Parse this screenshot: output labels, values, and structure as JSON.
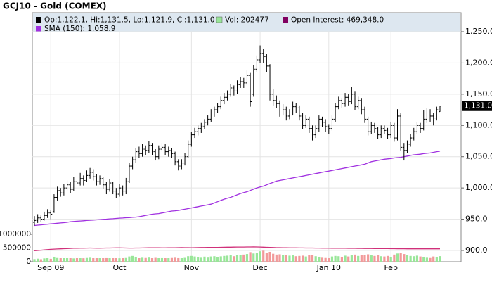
{
  "chart_data": {
    "type": "ohlc",
    "title": "GCJ10 - Gold (COMEX)",
    "legend": [
      "Op:1,122.1, Hi:1,131.5, Lo:1,121.9, Cl:1,131.0",
      "Vol: 202477",
      "Open Interest: 469,348.0",
      "SMA (150): 1,058.9"
    ],
    "categories": [
      null,
      null,
      null,
      null,
      null,
      "Sep 09",
      null,
      null,
      null,
      null,
      null,
      null,
      null,
      null,
      null,
      null,
      null,
      null,
      null,
      null,
      null,
      null,
      null,
      null,
      null,
      null,
      "Oct",
      null,
      null,
      null,
      null,
      null,
      null,
      null,
      null,
      null,
      null,
      null,
      null,
      null,
      null,
      null,
      null,
      null,
      null,
      null,
      null,
      null,
      "Nov",
      null,
      null,
      null,
      null,
      null,
      null,
      null,
      null,
      null,
      null,
      null,
      null,
      null,
      null,
      null,
      null,
      null,
      null,
      null,
      null,
      "Dec",
      null,
      null,
      null,
      null,
      null,
      null,
      null,
      null,
      null,
      null,
      null,
      null,
      null,
      null,
      null,
      null,
      null,
      null,
      null,
      null,
      "Jan 10",
      null,
      null,
      null,
      null,
      null,
      null,
      null,
      null,
      null,
      null,
      null,
      null,
      null,
      null,
      null,
      null,
      null,
      null,
      "Feb",
      null,
      null,
      null,
      null,
      null,
      null,
      null,
      null,
      null,
      null,
      null,
      null,
      null,
      null,
      null
    ],
    "ohlc": [
      [
        945,
        955,
        940,
        948
      ],
      [
        948,
        958,
        944,
        952
      ],
      [
        952,
        956,
        945,
        950
      ],
      [
        950,
        962,
        948,
        956
      ],
      [
        956,
        966,
        952,
        960
      ],
      [
        960,
        964,
        950,
        958
      ],
      [
        962,
        990,
        960,
        985
      ],
      [
        985,
        1002,
        980,
        996
      ],
      [
        996,
        1000,
        986,
        992
      ],
      [
        992,
        1006,
        988,
        1000
      ],
      [
        1000,
        1012,
        996,
        1005
      ],
      [
        1005,
        1010,
        992,
        998
      ],
      [
        998,
        1018,
        995,
        1010
      ],
      [
        1010,
        1016,
        1000,
        1008
      ],
      [
        1008,
        1024,
        1004,
        1015
      ],
      [
        1015,
        1020,
        1004,
        1012
      ],
      [
        1012,
        1028,
        1010,
        1020
      ],
      [
        1020,
        1032,
        1015,
        1025
      ],
      [
        1025,
        1030,
        1012,
        1018
      ],
      [
        1018,
        1022,
        1004,
        1010
      ],
      [
        1010,
        1020,
        1005,
        1015
      ],
      [
        1015,
        1018,
        998,
        1005
      ],
      [
        1005,
        1010,
        990,
        998
      ],
      [
        998,
        1014,
        994,
        1008
      ],
      [
        1008,
        1010,
        990,
        995
      ],
      [
        995,
        1000,
        984,
        990
      ],
      [
        990,
        1006,
        986,
        1000
      ],
      [
        1000,
        1004,
        988,
        995
      ],
      [
        995,
        1016,
        990,
        1010
      ],
      [
        1010,
        1040,
        1008,
        1035
      ],
      [
        1035,
        1050,
        1030,
        1045
      ],
      [
        1045,
        1064,
        1040,
        1058
      ],
      [
        1058,
        1066,
        1048,
        1055
      ],
      [
        1055,
        1070,
        1050,
        1062
      ],
      [
        1062,
        1068,
        1052,
        1060
      ],
      [
        1060,
        1075,
        1056,
        1068
      ],
      [
        1068,
        1072,
        1052,
        1058
      ],
      [
        1058,
        1062,
        1044,
        1050
      ],
      [
        1050,
        1068,
        1046,
        1062
      ],
      [
        1062,
        1072,
        1058,
        1065
      ],
      [
        1065,
        1070,
        1052,
        1058
      ],
      [
        1058,
        1066,
        1050,
        1060
      ],
      [
        1060,
        1064,
        1048,
        1055
      ],
      [
        1055,
        1058,
        1036,
        1042
      ],
      [
        1042,
        1046,
        1028,
        1035
      ],
      [
        1035,
        1046,
        1030,
        1040
      ],
      [
        1040,
        1056,
        1036,
        1050
      ],
      [
        1050,
        1076,
        1048,
        1070
      ],
      [
        1070,
        1090,
        1066,
        1085
      ],
      [
        1085,
        1096,
        1080,
        1090
      ],
      [
        1090,
        1100,
        1084,
        1095
      ],
      [
        1095,
        1104,
        1088,
        1098
      ],
      [
        1098,
        1110,
        1094,
        1105
      ],
      [
        1105,
        1116,
        1100,
        1110
      ],
      [
        1110,
        1126,
        1106,
        1120
      ],
      [
        1120,
        1130,
        1114,
        1125
      ],
      [
        1125,
        1136,
        1120,
        1130
      ],
      [
        1130,
        1146,
        1126,
        1140
      ],
      [
        1140,
        1152,
        1134,
        1145
      ],
      [
        1145,
        1156,
        1140,
        1150
      ],
      [
        1150,
        1166,
        1146,
        1160
      ],
      [
        1160,
        1164,
        1148,
        1155
      ],
      [
        1155,
        1172,
        1150,
        1165
      ],
      [
        1165,
        1178,
        1160,
        1170
      ],
      [
        1170,
        1176,
        1160,
        1168
      ],
      [
        1168,
        1188,
        1164,
        1180
      ],
      [
        1180,
        1184,
        1130,
        1138
      ],
      [
        1150,
        1196,
        1146,
        1190
      ],
      [
        1190,
        1212,
        1186,
        1205
      ],
      [
        1205,
        1228,
        1200,
        1215
      ],
      [
        1215,
        1222,
        1200,
        1210
      ],
      [
        1210,
        1214,
        1185,
        1195
      ],
      [
        1195,
        1198,
        1140,
        1150
      ],
      [
        1150,
        1158,
        1132,
        1140
      ],
      [
        1140,
        1148,
        1128,
        1135
      ],
      [
        1135,
        1140,
        1114,
        1120
      ],
      [
        1120,
        1134,
        1116,
        1125
      ],
      [
        1125,
        1130,
        1108,
        1115
      ],
      [
        1115,
        1126,
        1110,
        1120
      ],
      [
        1120,
        1138,
        1116,
        1130
      ],
      [
        1130,
        1136,
        1120,
        1128
      ],
      [
        1128,
        1132,
        1108,
        1115
      ],
      [
        1115,
        1120,
        1094,
        1100
      ],
      [
        1100,
        1116,
        1096,
        1110
      ],
      [
        1110,
        1114,
        1088,
        1095
      ],
      [
        1095,
        1100,
        1076,
        1085
      ],
      [
        1085,
        1100,
        1080,
        1095
      ],
      [
        1095,
        1116,
        1090,
        1110
      ],
      [
        1110,
        1114,
        1098,
        1105
      ],
      [
        1105,
        1110,
        1090,
        1098
      ],
      [
        1098,
        1102,
        1086,
        1095
      ],
      [
        1095,
        1116,
        1092,
        1110
      ],
      [
        1110,
        1136,
        1106,
        1130
      ],
      [
        1130,
        1146,
        1126,
        1140
      ],
      [
        1140,
        1144,
        1128,
        1135
      ],
      [
        1135,
        1152,
        1130,
        1145
      ],
      [
        1145,
        1150,
        1132,
        1138
      ],
      [
        1138,
        1162,
        1134,
        1150
      ],
      [
        1150,
        1154,
        1124,
        1130
      ],
      [
        1130,
        1146,
        1126,
        1140
      ],
      [
        1140,
        1144,
        1118,
        1125
      ],
      [
        1125,
        1130,
        1104,
        1110
      ],
      [
        1110,
        1114,
        1084,
        1090
      ],
      [
        1090,
        1106,
        1086,
        1100
      ],
      [
        1100,
        1104,
        1088,
        1095
      ],
      [
        1095,
        1098,
        1078,
        1085
      ],
      [
        1085,
        1100,
        1080,
        1095
      ],
      [
        1095,
        1100,
        1086,
        1092
      ],
      [
        1092,
        1096,
        1078,
        1085
      ],
      [
        1085,
        1106,
        1080,
        1100
      ],
      [
        1100,
        1104,
        1074,
        1080
      ],
      [
        1080,
        1126,
        1076,
        1115
      ],
      [
        1115,
        1120,
        1060,
        1065
      ],
      [
        1065,
        1072,
        1044,
        1060
      ],
      [
        1060,
        1076,
        1056,
        1070
      ],
      [
        1070,
        1086,
        1066,
        1080
      ],
      [
        1080,
        1096,
        1076,
        1090
      ],
      [
        1090,
        1106,
        1086,
        1100
      ],
      [
        1100,
        1104,
        1088,
        1095
      ],
      [
        1095,
        1124,
        1092,
        1110
      ],
      [
        1110,
        1128,
        1104,
        1120
      ],
      [
        1120,
        1126,
        1106,
        1115
      ],
      [
        1115,
        1120,
        1100,
        1112
      ],
      [
        1112,
        1130,
        1108,
        1125
      ],
      [
        1122.1,
        1131.5,
        1121.9,
        1131
      ]
    ],
    "sma": {
      "name": "SMA (150)",
      "color": "#a030e0",
      "values": [
        940,
        940.5,
        941,
        941.5,
        942,
        942.5,
        943,
        943.5,
        944,
        944.5,
        945,
        946,
        946.4,
        946.8,
        947.2,
        947.5,
        947.9,
        948.3,
        948.6,
        949,
        949.4,
        949.7,
        950.1,
        950.5,
        950.8,
        951.2,
        951.6,
        951.9,
        952.3,
        952.6,
        953,
        953.4,
        954,
        955,
        956,
        957,
        958,
        958.5,
        959,
        960,
        961,
        962,
        963,
        963.5,
        964,
        965,
        966,
        967,
        968,
        969,
        970,
        971,
        972,
        973,
        974,
        976,
        978,
        980,
        982,
        983.5,
        985,
        987,
        989,
        991,
        992.5,
        994,
        996,
        998,
        1000,
        1001.5,
        1003,
        1005,
        1007,
        1009,
        1011,
        1012,
        1013,
        1014,
        1015,
        1016,
        1017,
        1018,
        1019,
        1020,
        1021,
        1022,
        1023,
        1024,
        1025,
        1026,
        1027,
        1028,
        1029,
        1030,
        1031,
        1032,
        1033,
        1034,
        1035,
        1036,
        1037,
        1038,
        1040,
        1042,
        1043,
        1044,
        1045,
        1046,
        1046.5,
        1047,
        1048,
        1048.5,
        1049,
        1050,
        1051,
        1052,
        1053,
        1053.5,
        1054,
        1055,
        1055.5,
        1056,
        1057,
        1058,
        1058.9
      ]
    },
    "volume": {
      "up_color": "#99e699",
      "down_color": "#f29a9a",
      "values": [
        95000,
        110000,
        90000,
        120000,
        130000,
        105000,
        180000,
        160000,
        140000,
        150000,
        130000,
        140000,
        120000,
        150000,
        135000,
        125000,
        160000,
        170000,
        150000,
        140000,
        130000,
        145000,
        155000,
        135000,
        150000,
        140000,
        125000,
        135000,
        160000,
        190000,
        210000,
        180000,
        150000,
        170000,
        160000,
        175000,
        150000,
        165000,
        140000,
        155000,
        150000,
        145000,
        160000,
        170000,
        155000,
        140000,
        165000,
        200000,
        210000,
        190000,
        180000,
        170000,
        185000,
        175000,
        190000,
        200000,
        180000,
        195000,
        210000,
        220000,
        230000,
        200000,
        240000,
        250000,
        260000,
        280000,
        350000,
        300000,
        320000,
        380000,
        400000,
        330000,
        360000,
        290000,
        260000,
        270000,
        240000,
        250000,
        220000,
        230000,
        200000,
        210000,
        220000,
        190000,
        230000,
        250000,
        200000,
        180000,
        170000,
        160000,
        150000,
        190000,
        210000,
        200000,
        180000,
        220000,
        190000,
        230000,
        260000,
        210000,
        240000,
        250000,
        270000,
        230000,
        210000,
        240000,
        200000,
        190000,
        210000,
        180000,
        260000,
        300000,
        330000,
        280000,
        240000,
        210000,
        200000,
        220000,
        190000,
        180000,
        170000,
        160000,
        190000,
        180000,
        202477
      ]
    },
    "open_interest": {
      "name": "Open Interest",
      "color": "#d0307a",
      "values": [
        400000,
        410000,
        420000,
        430000,
        440000,
        450000,
        460000,
        465000,
        470000,
        475000,
        480000,
        485000,
        490000,
        492000,
        494000,
        496000,
        498000,
        500000,
        498000,
        496000,
        495000,
        497000,
        499000,
        501000,
        503000,
        505000,
        504000,
        502000,
        500000,
        498000,
        497000,
        499000,
        501000,
        503000,
        505000,
        507000,
        509000,
        510000,
        508000,
        506000,
        505000,
        507000,
        509000,
        511000,
        513000,
        515000,
        514000,
        512000,
        511000,
        513000,
        515000,
        517000,
        519000,
        520000,
        521000,
        522000,
        524000,
        526000,
        528000,
        530000,
        532000,
        534000,
        535000,
        536000,
        537000,
        538000,
        539000,
        540000,
        538000,
        535000,
        530000,
        526000,
        522000,
        518000,
        514000,
        512000,
        510000,
        508000,
        506000,
        505000,
        504000,
        503000,
        502000,
        501000,
        500000,
        499000,
        498000,
        497000,
        496000,
        495000,
        494000,
        493000,
        492000,
        491000,
        490000,
        489000,
        488000,
        487000,
        486000,
        485000,
        484000,
        483000,
        482000,
        481000,
        480000,
        479000,
        478000,
        477000,
        476000,
        475000,
        474000,
        473000,
        472000,
        471000,
        470000,
        470000,
        469500,
        469000,
        469000,
        469000,
        469200,
        469300,
        469400,
        469300,
        469348
      ]
    },
    "ylim": [
      900,
      1250
    ],
    "yticks": [
      {
        "value": 900,
        "label": "900.0"
      },
      {
        "value": 950,
        "label": "950.0"
      },
      {
        "value": 1000,
        "label": "1,000.0"
      },
      {
        "value": 1050,
        "label": "1,050.0"
      },
      {
        "value": 1100,
        "label": "1,100.0"
      },
      {
        "value": 1150,
        "label": "1,150.0"
      },
      {
        "value": 1200,
        "label": "1,200.0"
      },
      {
        "value": 1250,
        "label": "1,250.0"
      }
    ],
    "vlim": [
      0,
      1000000
    ],
    "vticks": [
      0,
      500000,
      1000000
    ],
    "last_price": {
      "value": 1131,
      "label": "1,131.0"
    },
    "grid": true
  }
}
